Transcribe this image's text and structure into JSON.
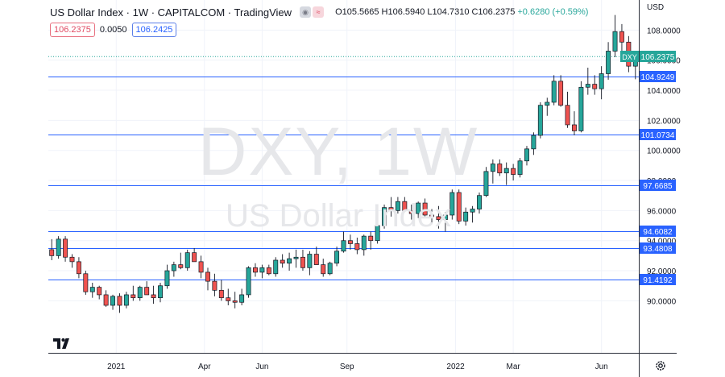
{
  "header": {
    "title": "US Dollar Index · 1W · CAPITALCOM · TradingView",
    "ohlc": "O105.5665 H106.5940 L104.7310 C106.2375",
    "change": "+0.6280 (+0.59%)"
  },
  "quote": {
    "bid": "106.2375",
    "spread": "0.0050",
    "ask": "106.2425"
  },
  "currency_label": "USD",
  "watermark": {
    "main": "DXY, 1W",
    "sub": "US Dollar Index"
  },
  "colors": {
    "up": "#26a69a",
    "down": "#ef5350",
    "level_line": "#2962ff",
    "last_price": "#26a69a"
  },
  "icons": {
    "logo": "tradingview-logo-icon",
    "settings": "gear-icon"
  },
  "chart_data": {
    "type": "candlestick",
    "symbol": "DXY",
    "last_price": 106.2375,
    "ylim": [
      89.0,
      109.0
    ],
    "y_ticks": [
      "90.0000",
      "92.0000",
      "94.0000",
      "96.0000",
      "98.0000",
      "100.0000",
      "102.0000",
      "104.0000",
      "106.0000",
      "108.0000"
    ],
    "x_ticks": [
      {
        "label": "2021",
        "x": 10
      },
      {
        "label": "Apr",
        "x": 23
      },
      {
        "label": "Jun",
        "x": 31.5
      },
      {
        "label": "Sep",
        "x": 44
      },
      {
        "label": "2022",
        "x": 60
      },
      {
        "label": "Mar",
        "x": 68.5
      },
      {
        "label": "Jun",
        "x": 81.5
      }
    ],
    "levels": [
      "104.9249",
      "101.0734",
      "97.6685",
      "94.6082",
      "93.4808",
      "91.4192"
    ],
    "candles": [
      [
        93.4,
        94.1,
        92.7,
        93.0
      ],
      [
        93.0,
        94.3,
        92.8,
        94.1
      ],
      [
        94.1,
        94.3,
        92.6,
        92.9
      ],
      [
        92.9,
        93.1,
        92.2,
        92.6
      ],
      [
        92.6,
        92.9,
        91.5,
        91.8
      ],
      [
        91.8,
        92.0,
        90.4,
        90.6
      ],
      [
        90.6,
        91.2,
        90.2,
        90.9
      ],
      [
        90.9,
        91.0,
        90.1,
        90.4
      ],
      [
        90.4,
        90.7,
        89.6,
        89.7
      ],
      [
        89.7,
        90.4,
        89.4,
        90.3
      ],
      [
        90.3,
        90.5,
        89.2,
        89.7
      ],
      [
        89.7,
        90.6,
        89.5,
        90.4
      ],
      [
        90.4,
        91.0,
        90.0,
        90.2
      ],
      [
        90.2,
        91.0,
        90.0,
        90.9
      ],
      [
        90.9,
        91.3,
        90.4,
        90.4
      ],
      [
        90.4,
        91.0,
        89.8,
        90.2
      ],
      [
        90.2,
        91.2,
        89.9,
        91.0
      ],
      [
        91.0,
        92.4,
        90.8,
        92.0
      ],
      [
        92.0,
        92.6,
        91.6,
        92.4
      ],
      [
        92.4,
        93.2,
        92.1,
        92.2
      ],
      [
        92.2,
        93.4,
        92.0,
        93.2
      ],
      [
        93.2,
        93.5,
        92.7,
        92.6
      ],
      [
        92.6,
        93.0,
        91.5,
        91.9
      ],
      [
        91.9,
        92.2,
        90.7,
        91.3
      ],
      [
        91.3,
        91.8,
        90.3,
        90.7
      ],
      [
        90.7,
        91.4,
        90.0,
        90.2
      ],
      [
        90.2,
        90.8,
        89.7,
        90.0
      ],
      [
        90.0,
        90.6,
        89.5,
        89.9
      ],
      [
        89.9,
        90.8,
        89.7,
        90.4
      ],
      [
        90.4,
        92.3,
        90.2,
        92.2
      ],
      [
        92.2,
        92.5,
        91.6,
        91.9
      ],
      [
        91.9,
        92.4,
        91.5,
        92.2
      ],
      [
        92.2,
        92.4,
        91.7,
        91.8
      ],
      [
        91.8,
        92.9,
        91.6,
        92.7
      ],
      [
        92.7,
        93.1,
        92.2,
        92.5
      ],
      [
        92.5,
        93.2,
        92.0,
        92.8
      ],
      [
        92.8,
        93.4,
        92.2,
        92.9
      ],
      [
        92.9,
        93.4,
        92.0,
        92.2
      ],
      [
        92.2,
        93.3,
        91.7,
        93.1
      ],
      [
        93.1,
        93.6,
        92.4,
        92.4
      ],
      [
        92.4,
        92.8,
        91.6,
        91.8
      ],
      [
        91.8,
        92.6,
        91.7,
        92.5
      ],
      [
        92.5,
        93.6,
        92.3,
        93.3
      ],
      [
        93.3,
        94.6,
        93.2,
        94.0
      ],
      [
        94.0,
        94.4,
        93.4,
        93.8
      ],
      [
        93.8,
        94.2,
        93.1,
        93.4
      ],
      [
        93.4,
        94.4,
        93.0,
        94.3
      ],
      [
        94.3,
        94.6,
        93.4,
        94.0
      ],
      [
        94.0,
        95.3,
        93.8,
        95.0
      ],
      [
        95.0,
        96.4,
        94.8,
        96.2
      ],
      [
        96.2,
        96.9,
        95.6,
        96.0
      ],
      [
        96.0,
        96.9,
        95.8,
        96.6
      ],
      [
        96.6,
        96.9,
        95.9,
        96.0
      ],
      [
        96.0,
        96.4,
        95.4,
        95.8
      ],
      [
        95.8,
        96.6,
        95.5,
        96.5
      ],
      [
        96.5,
        96.8,
        95.6,
        95.7
      ],
      [
        95.7,
        96.1,
        95.2,
        95.6
      ],
      [
        95.6,
        96.3,
        94.8,
        95.4
      ],
      [
        95.4,
        95.9,
        94.6,
        95.7
      ],
      [
        95.7,
        97.4,
        95.4,
        97.2
      ],
      [
        97.2,
        97.4,
        95.1,
        95.3
      ],
      [
        95.3,
        96.2,
        95.0,
        95.9
      ],
      [
        95.9,
        96.3,
        95.2,
        96.1
      ],
      [
        96.1,
        97.2,
        95.8,
        97.0
      ],
      [
        97.0,
        98.9,
        96.9,
        98.6
      ],
      [
        98.6,
        99.4,
        97.8,
        99.1
      ],
      [
        99.1,
        99.4,
        98.3,
        98.5
      ],
      [
        98.5,
        99.2,
        97.7,
        98.8
      ],
      [
        98.8,
        99.1,
        98.0,
        98.4
      ],
      [
        98.4,
        99.5,
        98.2,
        99.3
      ],
      [
        99.3,
        100.3,
        99.0,
        100.1
      ],
      [
        100.1,
        101.2,
        99.7,
        101.0
      ],
      [
        101.0,
        103.2,
        100.8,
        103.0
      ],
      [
        103.0,
        103.5,
        102.3,
        103.2
      ],
      [
        103.2,
        105.0,
        103.0,
        104.6
      ],
      [
        104.6,
        105.0,
        102.9,
        103.0
      ],
      [
        103.0,
        103.9,
        101.5,
        101.7
      ],
      [
        101.7,
        102.6,
        101.0,
        101.3
      ],
      [
        101.3,
        104.6,
        101.2,
        104.2
      ],
      [
        104.2,
        105.5,
        103.7,
        104.4
      ],
      [
        104.4,
        105.0,
        103.7,
        104.1
      ],
      [
        104.1,
        105.6,
        103.4,
        105.1
      ],
      [
        105.1,
        107.2,
        104.7,
        106.6
      ],
      [
        106.6,
        109.0,
        106.2,
        107.9
      ],
      [
        107.9,
        108.4,
        106.1,
        107.2
      ],
      [
        107.2,
        107.6,
        105.2,
        105.6
      ],
      [
        105.6,
        106.6,
        104.73,
        106.24
      ]
    ]
  }
}
